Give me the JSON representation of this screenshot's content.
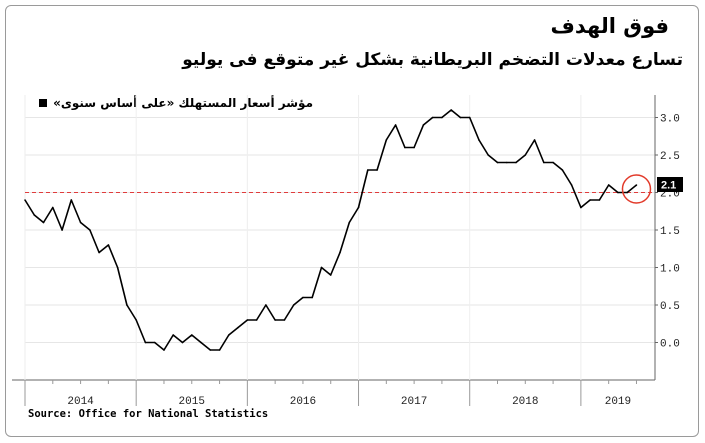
{
  "title": "فوق الهدف",
  "subtitle": "تسارع معدلات التضخم البريطانية بشكل غير متوقع فى يوليو",
  "source": "Source: Office for National Statistics",
  "colors": {
    "line": "#000000",
    "target": "#e03c3c",
    "highlight": "#e23a2a",
    "label_bg": "#000000"
  },
  "chart_data": {
    "type": "line",
    "series": [
      {
        "name": "مؤشر أسعار المستهلك «على أساس سنوى»",
        "x": [
          "2014-01",
          "2014-02",
          "2014-03",
          "2014-04",
          "2014-05",
          "2014-06",
          "2014-07",
          "2014-08",
          "2014-09",
          "2014-10",
          "2014-11",
          "2014-12",
          "2015-01",
          "2015-02",
          "2015-03",
          "2015-04",
          "2015-05",
          "2015-06",
          "2015-07",
          "2015-08",
          "2015-09",
          "2015-10",
          "2015-11",
          "2015-12",
          "2016-01",
          "2016-02",
          "2016-03",
          "2016-04",
          "2016-05",
          "2016-06",
          "2016-07",
          "2016-08",
          "2016-09",
          "2016-10",
          "2016-11",
          "2016-12",
          "2017-01",
          "2017-02",
          "2017-03",
          "2017-04",
          "2017-05",
          "2017-06",
          "2017-07",
          "2017-08",
          "2017-09",
          "2017-10",
          "2017-11",
          "2017-12",
          "2018-01",
          "2018-02",
          "2018-03",
          "2018-04",
          "2018-05",
          "2018-06",
          "2018-07",
          "2018-08",
          "2018-09",
          "2018-10",
          "2018-11",
          "2018-12",
          "2019-01",
          "2019-02",
          "2019-03",
          "2019-04",
          "2019-05",
          "2019-06",
          "2019-07"
        ],
        "values": [
          1.9,
          1.7,
          1.6,
          1.8,
          1.5,
          1.9,
          1.6,
          1.5,
          1.2,
          1.3,
          1.0,
          0.5,
          0.3,
          0.0,
          0.0,
          -0.1,
          0.1,
          0.0,
          0.1,
          0.0,
          -0.1,
          -0.1,
          0.1,
          0.2,
          0.3,
          0.3,
          0.5,
          0.3,
          0.3,
          0.5,
          0.6,
          0.6,
          1.0,
          0.9,
          1.2,
          1.6,
          1.8,
          2.3,
          2.3,
          2.7,
          2.9,
          2.6,
          2.6,
          2.9,
          3.0,
          3.0,
          3.1,
          3.0,
          3.0,
          2.7,
          2.5,
          2.4,
          2.4,
          2.4,
          2.5,
          2.7,
          2.4,
          2.4,
          2.3,
          2.1,
          1.8,
          1.9,
          1.9,
          2.1,
          2.0,
          2.0,
          2.1
        ]
      }
    ],
    "target_line": 2.0,
    "last_value_label": "2.1",
    "ylim": [
      -0.5,
      3.3
    ],
    "yticks": [
      0.0,
      0.5,
      1.0,
      1.5,
      2.0,
      2.5,
      3.0
    ],
    "ytick_labels": [
      "0.0",
      "0.5",
      "1.0",
      "1.5",
      "2.0",
      "2.5",
      "3.0"
    ],
    "x_year_labels": [
      "2014",
      "2015",
      "2016",
      "2017",
      "2018",
      "2019"
    ],
    "xlim": [
      "2014-01",
      "2019-09"
    ],
    "grid": true,
    "y_axis_side": "right",
    "legend_position": "top-left"
  }
}
